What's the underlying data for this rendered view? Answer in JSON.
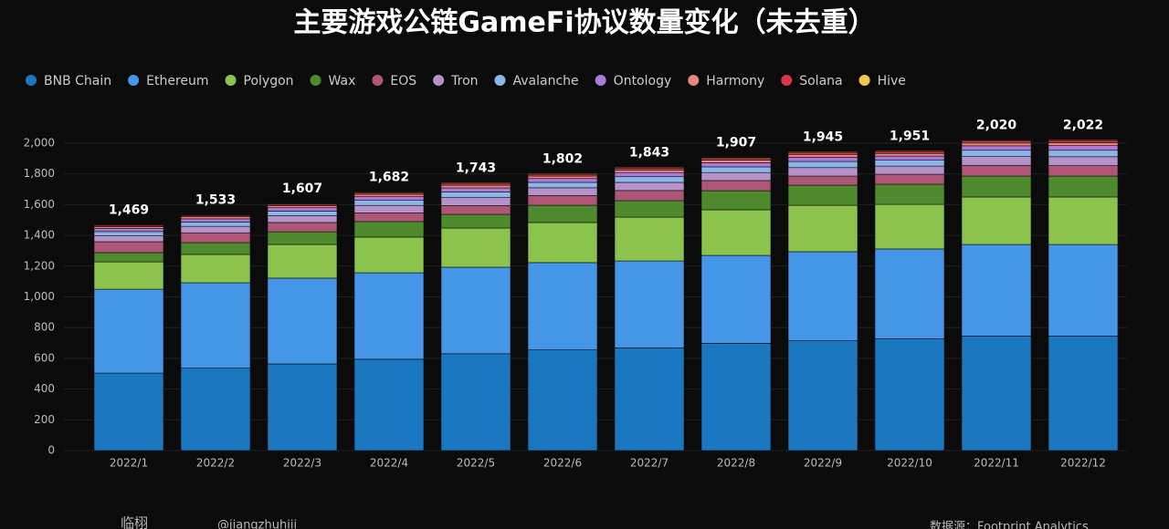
{
  "chart_data": {
    "type": "stacked_bar",
    "title": "主要游戏公链GameFi协议数量变化（未去重）",
    "categories": [
      "2022/1",
      "2022/2",
      "2022/3",
      "2022/4",
      "2022/5",
      "2022/6",
      "2022/7",
      "2022/8",
      "2022/9",
      "2022/10",
      "2022/11",
      "2022/12"
    ],
    "series": [
      {
        "name": "BNB Chain",
        "color": "#1b78c0",
        "values": [
          504,
          536,
          564,
          594,
          630,
          655,
          668,
          698,
          714,
          727,
          745,
          745
        ]
      },
      {
        "name": "Ethereum",
        "color": "#4596e6",
        "values": [
          546,
          556,
          558,
          563,
          563,
          568,
          566,
          572,
          580,
          585,
          596,
          596
        ]
      },
      {
        "name": "Polygon",
        "color": "#8cc34c",
        "values": [
          178,
          184,
          219,
          232,
          255,
          261,
          285,
          297,
          302,
          290,
          309,
          309
        ]
      },
      {
        "name": "Wax",
        "color": "#4f8a2f",
        "values": [
          60,
          77,
          83,
          101,
          89,
          112,
          107,
          124,
          131,
          131,
          136,
          136
        ]
      },
      {
        "name": "EOS",
        "color": "#ad5677",
        "values": [
          71,
          64,
          60,
          57,
          57,
          64,
          66,
          66,
          59,
          65,
          70,
          68
        ]
      },
      {
        "name": "Tron",
        "color": "#b592c9",
        "values": [
          40,
          42,
          44,
          48,
          52,
          50,
          53,
          52,
          55,
          53,
          57,
          58
        ]
      },
      {
        "name": "Avalanche",
        "color": "#8ab6e8",
        "values": [
          26,
          28,
          30,
          33,
          37,
          35,
          37,
          37,
          40,
          38,
          41,
          42
        ]
      },
      {
        "name": "Ontology",
        "color": "#a97bd6",
        "values": [
          20,
          21,
          22,
          24,
          26,
          25,
          27,
          27,
          28,
          27,
          29,
          30
        ]
      },
      {
        "name": "Harmony",
        "color": "#e8867f",
        "values": [
          12,
          13,
          14,
          15,
          17,
          16,
          17,
          17,
          18,
          17,
          18,
          19
        ]
      },
      {
        "name": "Solana",
        "color": "#d8364a",
        "values": [
          8,
          8,
          9,
          10,
          12,
          11,
          12,
          12,
          13,
          13,
          14,
          14
        ]
      },
      {
        "name": "Hive",
        "color": "#f2c94c",
        "values": [
          4,
          4,
          4,
          5,
          5,
          5,
          5,
          5,
          5,
          5,
          5,
          5
        ]
      }
    ],
    "totals": {
      "values": [
        1469,
        1533,
        1607,
        1682,
        1743,
        1802,
        1843,
        1907,
        1945,
        1951,
        2020,
        2022
      ],
      "labels": [
        "1,469",
        "1,533",
        "1,607",
        "1,682",
        "1,743",
        "1,802",
        "1,843",
        "1,907",
        "1,945",
        "1,951",
        "2,020",
        "2,022"
      ]
    },
    "ylim": [
      0,
      2000
    ],
    "yticks": [
      0,
      200,
      400,
      600,
      800,
      {
        "value": 1000,
        "label": "1,000"
      },
      {
        "value": 1200,
        "label": "1,200"
      },
      {
        "value": 1400,
        "label": "1,400"
      },
      {
        "value": 1600,
        "label": "1,600"
      },
      {
        "value": 1800,
        "label": "1,800"
      },
      {
        "value": 2000,
        "label": "2,000"
      }
    ],
    "grid": true,
    "legend": "top"
  },
  "footer": {
    "author": "临栩",
    "twitter": "@jiangzhuhiii",
    "source": "数据源：Footprint Analytics"
  }
}
